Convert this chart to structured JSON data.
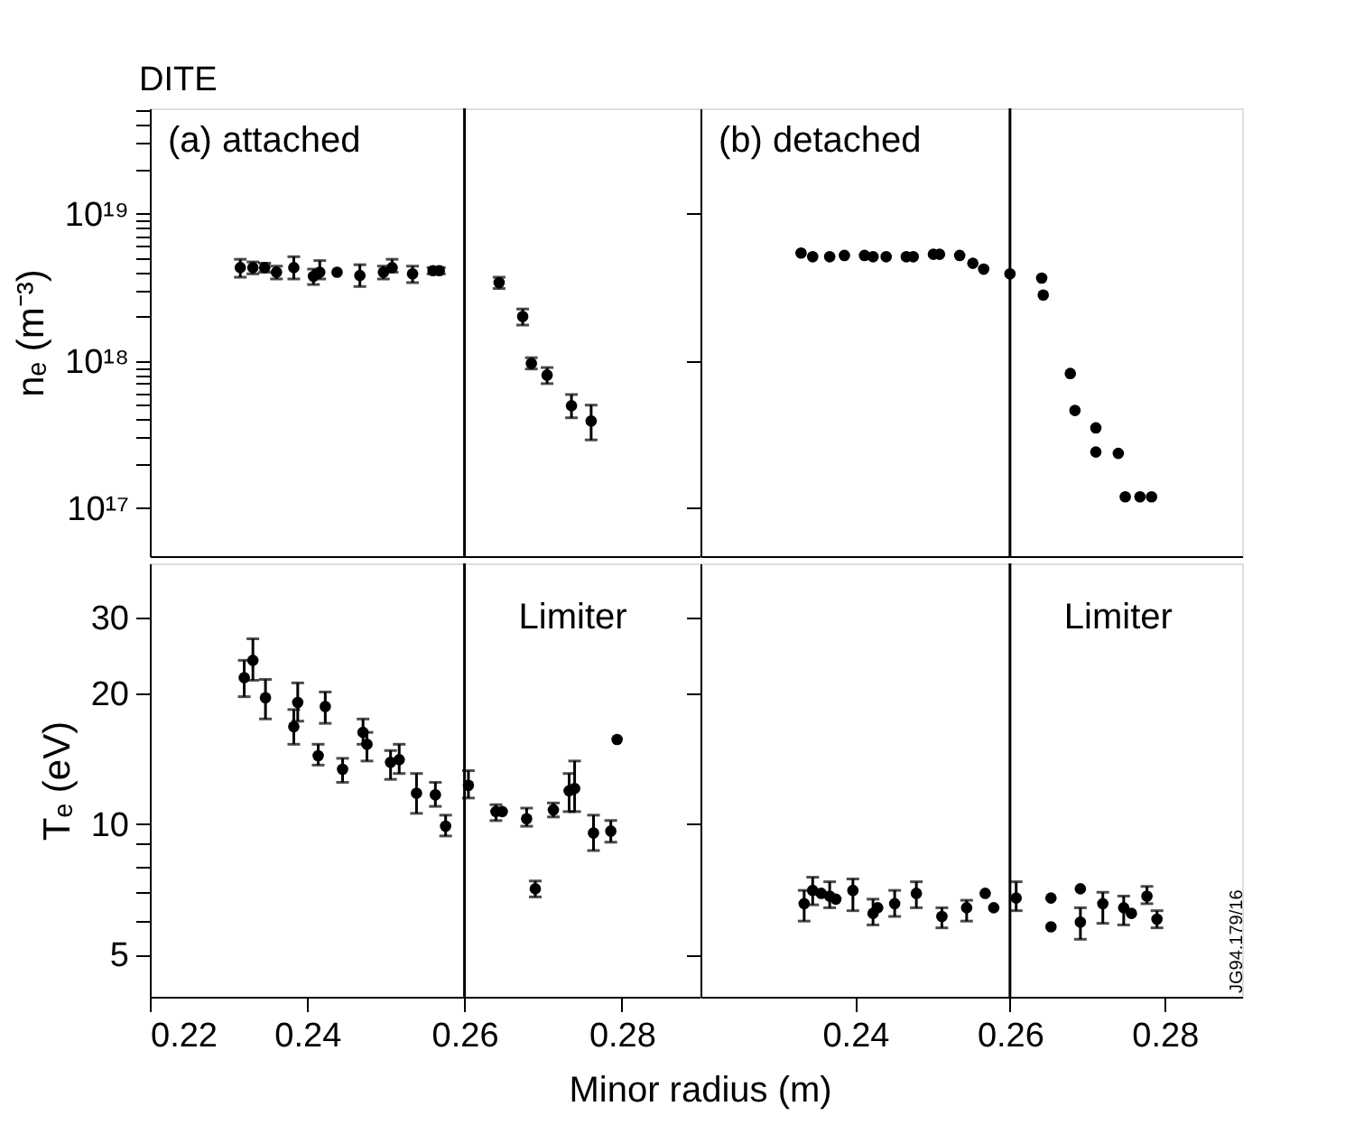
{
  "chart_data": [
    {
      "type": "scatter",
      "title": "DITE",
      "ylabel": "nₑ (m⁻³)",
      "annotations": [
        "(a) attached"
      ],
      "log": "y",
      "grid": false,
      "marker": "circle",
      "tick_labels": "y",
      "xlim": [
        0.22,
        0.29
      ],
      "xticks": [
        0.22,
        0.24,
        0.26,
        0.28
      ],
      "ylim": [
        4.7e+16,
        5.2e+19
      ],
      "yticks": [
        {
          "value": 1e+17,
          "label": "10¹⁷"
        },
        {
          "value": 2e+17,
          "label": null
        },
        {
          "value": 3e+17,
          "label": null
        },
        {
          "value": 4e+17,
          "label": null
        },
        {
          "value": 5e+17,
          "label": null
        },
        {
          "value": 6e+17,
          "label": null
        },
        {
          "value": 7e+17,
          "label": null
        },
        {
          "value": 8e+17,
          "label": null
        },
        {
          "value": 9e+17,
          "label": null
        },
        {
          "value": 1e+18,
          "label": "10¹⁸"
        },
        {
          "value": 2e+18,
          "label": null
        },
        {
          "value": 3e+18,
          "label": null
        },
        {
          "value": 4e+18,
          "label": null
        },
        {
          "value": 5e+18,
          "label": null
        },
        {
          "value": 6e+18,
          "label": null
        },
        {
          "value": 7e+18,
          "label": null
        },
        {
          "value": 8e+18,
          "label": null
        },
        {
          "value": 9e+18,
          "label": null
        },
        {
          "value": 1e+19,
          "label": "10¹⁹"
        },
        {
          "value": 2e+19,
          "label": null
        },
        {
          "value": 3e+19,
          "label": null
        },
        {
          "value": 4e+19,
          "label": null
        },
        {
          "value": 5e+19,
          "label": null
        }
      ],
      "ref_lines": [
        {
          "axis": "x",
          "value": 0.26,
          "label": null
        }
      ],
      "series": [
        {
          "color": "#000000",
          "x": [
            0.2315,
            0.2331,
            0.2346,
            0.2361,
            0.2383,
            0.2408,
            0.2416,
            0.2438,
            0.2467,
            0.2497,
            0.2508,
            0.2534,
            0.256,
            0.2568,
            0.2644,
            0.2674,
            0.2685,
            0.2705,
            0.2736,
            0.2761
          ],
          "values": [
            4.3e+18,
            4.3e+18,
            4.3e+18,
            4e+18,
            4.3e+18,
            3.75e+18,
            4e+18,
            4e+18,
            3.8e+18,
            4e+18,
            4.3e+18,
            3.9e+18,
            4.1e+18,
            4.1e+18,
            3.4e+18,
            2e+18,
            9.6e+17,
            8e+17,
            4.95e+17,
            3.9e+17
          ],
          "errors": [
            [
              3.7e+18,
              4.9e+18
            ],
            [
              3.9e+18,
              4.7e+18
            ],
            [
              4e+18,
              4.6e+18
            ],
            [
              3.6e+18,
              4.4e+18
            ],
            [
              3.6e+18,
              5.1e+18
            ],
            [
              3.3e+18,
              4.2e+18
            ],
            [
              3.6e+18,
              4.8e+18
            ],
            null,
            [
              3.2e+18,
              4.5e+18
            ],
            [
              3.6e+18,
              4.4e+18
            ],
            [
              4e+18,
              4.9e+18
            ],
            [
              3.4e+18,
              4.4e+18
            ],
            [
              3.9e+18,
              4.3e+18
            ],
            [
              3.9e+18,
              4.3e+18
            ],
            [
              3.1e+18,
              3.7e+18
            ],
            [
              1.75e+18,
              2.25e+18
            ],
            [
              8.8e+17,
              1.05e+18
            ],
            [
              7e+17,
              9e+17
            ],
            [
              4.1e+17,
              5.9e+17
            ],
            [
              2.9e+17,
              5e+17
            ]
          ]
        }
      ]
    },
    {
      "type": "scatter",
      "annotations": [
        "(b) detached"
      ],
      "log": "y",
      "grid": false,
      "marker": "circle",
      "tick_labels": false,
      "xlim": [
        0.22,
        0.29
      ],
      "xticks": [
        0.24,
        0.26,
        0.28
      ],
      "ylim": [
        4.7e+16,
        5.2e+19
      ],
      "yticks": [
        1e+17,
        1e+18,
        1e+19
      ],
      "ref_lines": [
        {
          "axis": "x",
          "value": 0.26,
          "label": null
        }
      ],
      "series": [
        {
          "color": "#000000",
          "x": [
            0.233,
            0.2345,
            0.2367,
            0.2386,
            0.2412,
            0.2423,
            0.244,
            0.2466,
            0.2475,
            0.2501,
            0.2509,
            0.2535,
            0.2552,
            0.2566,
            0.26,
            0.2641,
            0.2643,
            0.2678,
            0.2684,
            0.2711,
            0.2711,
            0.274,
            0.2749,
            0.2768,
            0.2783
          ],
          "values": [
            5.4e+18,
            5.1e+18,
            5.1e+18,
            5.2e+18,
            5.2e+18,
            5.1e+18,
            5.1e+18,
            5.1e+18,
            5.1e+18,
            5.3e+18,
            5.3e+18,
            5.2e+18,
            4.6e+18,
            4.2e+18,
            3.9e+18,
            3.65e+18,
            2.8e+18,
            8.2e+17,
            4.6e+17,
            3.5e+17,
            2.4e+17,
            2.35e+17,
            1.19e+17,
            1.19e+17,
            1.19e+17
          ]
        }
      ]
    },
    {
      "type": "scatter",
      "ylabel": "Tₑ (eV)",
      "xlabel": "Minor radius (m)",
      "log": "y",
      "grid": false,
      "marker": "circle",
      "xlim": [
        0.22,
        0.29
      ],
      "xticks": [
        0.22,
        0.24,
        0.26,
        0.28
      ],
      "ylim": [
        4,
        40
      ],
      "yticks": [
        5,
        {
          "value": 6,
          "label": null
        },
        {
          "value": 7,
          "label": null
        },
        {
          "value": 8,
          "label": null
        },
        {
          "value": 9,
          "label": null
        },
        10,
        20,
        30
      ],
      "ref_lines": [
        {
          "axis": "x",
          "value": 0.26,
          "label": "Limiter"
        }
      ],
      "series": [
        {
          "color": "#000000",
          "x": [
            0.232,
            0.2331,
            0.2347,
            0.2383,
            0.2388,
            0.2414,
            0.2423,
            0.2445,
            0.2471,
            0.2476,
            0.2506,
            0.2517,
            0.2539,
            0.2563,
            0.2576,
            0.2605,
            0.264,
            0.2648,
            0.2679,
            0.269,
            0.2713,
            0.2733,
            0.274,
            0.2764,
            0.2786,
            0.2794
          ],
          "values": [
            21.8,
            23.9,
            19.6,
            16.8,
            19.1,
            14.4,
            18.7,
            13.4,
            16.3,
            15.3,
            13.9,
            14.1,
            11.8,
            11.7,
            9.9,
            12.3,
            10.7,
            10.7,
            10.3,
            7.1,
            10.8,
            11.95,
            12.1,
            9.55,
            9.65,
            15.7
          ],
          "errors": [
            [
              19.7,
              23.9
            ],
            [
              21.5,
              26.8
            ],
            [
              17.5,
              21.6
            ],
            [
              15.3,
              18.4
            ],
            [
              17.3,
              21.2
            ],
            [
              13.7,
              15.3
            ],
            [
              17.1,
              20.2
            ],
            [
              12.5,
              14.2
            ],
            [
              15.3,
              17.5
            ],
            [
              14.0,
              16.3
            ],
            [
              12.7,
              14.8
            ],
            [
              13.1,
              15.3
            ],
            [
              10.6,
              13.1
            ],
            [
              11.0,
              12.5
            ],
            [
              9.4,
              10.5
            ],
            [
              11.5,
              13.3
            ],
            [
              10.2,
              11.1
            ],
            null,
            [
              9.9,
              10.9
            ],
            [
              6.8,
              7.4
            ],
            [
              10.4,
              11.2
            ],
            [
              10.7,
              13.1
            ],
            [
              10.7,
              14.0
            ],
            [
              8.7,
              10.5
            ],
            [
              9.1,
              10.2
            ],
            null
          ]
        }
      ]
    },
    {
      "type": "scatter",
      "annotations": [
        "JG94.179/16"
      ],
      "log": "y",
      "grid": false,
      "marker": "circle",
      "tick_labels": "x",
      "xlim": [
        0.22,
        0.29
      ],
      "xticks": [
        0.24,
        0.26,
        0.28
      ],
      "ylim": [
        4,
        40
      ],
      "yticks": [
        5,
        10,
        20,
        30
      ],
      "ref_lines": [
        {
          "axis": "x",
          "value": 0.26,
          "label": "Limiter"
        }
      ],
      "series": [
        {
          "color": "#000000",
          "x": [
            0.2334,
            0.2345,
            0.2356,
            0.2367,
            0.2375,
            0.2397,
            0.2423,
            0.2429,
            0.2451,
            0.2479,
            0.2512,
            0.2544,
            0.2568,
            0.2579,
            0.2608,
            0.2653,
            0.2653,
            0.2691,
            0.2691,
            0.272,
            0.2747,
            0.2757,
            0.2777,
            0.279
          ],
          "values": [
            6.56,
            7.04,
            6.93,
            6.83,
            6.72,
            7.04,
            6.23,
            6.42,
            6.56,
            6.93,
            6.13,
            6.42,
            6.93,
            6.42,
            6.76,
            6.76,
            5.8,
            7.1,
            5.95,
            6.56,
            6.42,
            6.23,
            6.83,
            6.04
          ],
          "errors": [
            [
              5.98,
              7.04
            ],
            [
              6.52,
              7.55
            ],
            null,
            [
              6.42,
              7.37
            ],
            null,
            [
              6.32,
              7.48
            ],
            [
              5.86,
              6.72
            ],
            null,
            [
              6.13,
              7.04
            ],
            [
              6.42,
              7.37
            ],
            [
              5.77,
              6.42
            ],
            [
              5.98,
              6.68
            ],
            null,
            null,
            [
              6.32,
              7.37
            ],
            null,
            null,
            null,
            [
              5.43,
              6.42
            ],
            [
              5.91,
              6.97
            ],
            [
              5.86,
              6.83
            ],
            null,
            [
              6.56,
              7.19
            ],
            [
              5.77,
              6.32
            ]
          ]
        }
      ]
    }
  ]
}
